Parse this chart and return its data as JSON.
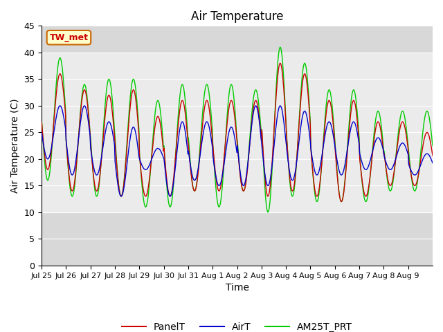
{
  "title": "Air Temperature",
  "ylabel": "Air Temperature (C)",
  "xlabel": "Time",
  "ylim": [
    0,
    45
  ],
  "yticks": [
    0,
    5,
    10,
    15,
    20,
    25,
    30,
    35,
    40,
    45
  ],
  "x_labels": [
    "Jul 25",
    "Jul 26",
    "Jul 27",
    "Jul 28",
    "Jul 29",
    "Jul 30",
    "Jul 31",
    "Aug 1",
    "Aug 2",
    "Aug 3",
    "Aug 4",
    "Aug 5",
    "Aug 6",
    "Aug 7",
    "Aug 8",
    "Aug 9"
  ],
  "station_label": "TW_met",
  "panel_color": "#cc0000",
  "air_color": "#0000cc",
  "am25_color": "#00cc00",
  "legend_labels": [
    "PanelT",
    "AirT",
    "AM25T_PRT"
  ],
  "title_fontsize": 12,
  "label_fontsize": 10,
  "tick_fontsize": 9,
  "n_days": 16,
  "pts_per_day": 48,
  "panel_peaks": [
    36,
    33,
    32,
    33,
    28,
    31,
    31,
    31,
    31,
    38,
    36,
    31,
    31,
    27,
    27,
    25
  ],
  "panel_mins": [
    18,
    14,
    14,
    13,
    13,
    13,
    14,
    14,
    14,
    13,
    14,
    13,
    12,
    13,
    15,
    15
  ],
  "air_peaks": [
    30,
    30,
    27,
    26,
    22,
    27,
    27,
    26,
    30,
    30,
    29,
    27,
    27,
    24,
    23,
    21
  ],
  "air_mins": [
    20,
    17,
    17,
    13,
    18,
    13,
    16,
    15,
    15,
    15,
    16,
    17,
    17,
    18,
    18,
    17
  ],
  "am25_peaks": [
    39,
    34,
    35,
    35,
    31,
    34,
    34,
    34,
    33,
    41,
    38,
    33,
    33,
    29,
    29,
    29
  ],
  "am25_mins": [
    16,
    13,
    13,
    13,
    11,
    11,
    14,
    11,
    14,
    10,
    13,
    12,
    12,
    12,
    14,
    14
  ]
}
